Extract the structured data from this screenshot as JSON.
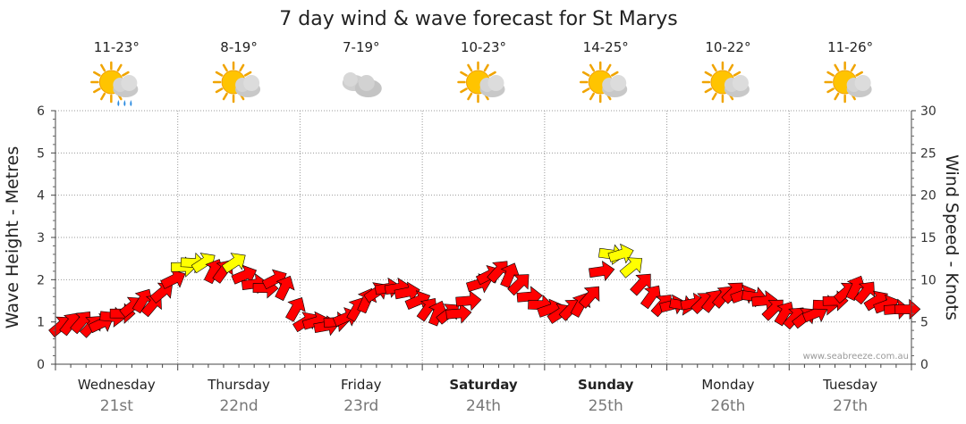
{
  "chart_data": {
    "type": "line",
    "title": "7 day wind & wave forecast for St Marys",
    "ylabel_left": "Wave Height - Metres",
    "ylabel_right": "Wind Speed - Knots",
    "ylim_left": [
      0,
      6
    ],
    "ylim_right": [
      0,
      30
    ],
    "yticks_left": [
      "0",
      "1",
      "2",
      "3",
      "4",
      "5",
      "6"
    ],
    "yticks_right": [
      "0",
      "5",
      "10",
      "15",
      "20",
      "25",
      "30"
    ],
    "days": [
      {
        "day": "Wednesday",
        "date": "21st",
        "temp": "11-23°",
        "icon": "sun-cloud-rain-icon",
        "bold": false
      },
      {
        "day": "Thursday",
        "date": "22nd",
        "temp": "8-19°",
        "icon": "sun-cloud-icon",
        "bold": false
      },
      {
        "day": "Friday",
        "date": "23rd",
        "temp": "7-19°",
        "icon": "cloud-icon",
        "bold": false
      },
      {
        "day": "Saturday",
        "date": "24th",
        "temp": "10-23°",
        "icon": "sun-cloud-icon",
        "bold": true
      },
      {
        "day": "Sunday",
        "date": "25th",
        "temp": "14-25°",
        "icon": "sun-cloud-icon",
        "bold": true
      },
      {
        "day": "Monday",
        "date": "26th",
        "temp": "10-22°",
        "icon": "sun-cloud-icon",
        "bold": false
      },
      {
        "day": "Tuesday",
        "date": "27th",
        "temp": "11-26°",
        "icon": "sun-cloud-icon",
        "bold": false
      }
    ],
    "series": [
      {
        "name": "wind",
        "unit": "knots",
        "x": [
          0,
          0.08,
          0.17,
          0.25,
          0.33,
          0.42,
          0.5,
          0.58,
          0.67,
          0.75,
          0.83,
          0.92,
          1,
          1.08,
          1.17,
          1.25,
          1.33,
          1.42,
          1.5,
          1.58,
          1.67,
          1.75,
          1.83,
          1.92,
          2,
          2.08,
          2.17,
          2.25,
          2.33,
          2.42,
          2.5,
          2.58,
          2.67,
          2.75,
          2.83,
          2.92,
          3,
          3.08,
          3.17,
          3.25,
          3.33,
          3.42,
          3.5,
          3.58,
          3.67,
          3.75,
          3.83,
          3.92,
          4,
          4.08,
          4.17,
          4.25,
          4.33,
          4.42,
          4.5,
          4.58,
          4.67,
          4.75,
          4.83,
          4.92,
          5,
          5.08,
          5.17,
          5.25,
          5.33,
          5.42,
          5.5,
          5.58,
          5.67,
          5.75,
          5.83,
          5.92,
          6,
          6.08,
          6.17,
          6.25,
          6.33,
          6.42,
          6.5,
          6.58,
          6.67,
          6.75,
          6.83,
          6.92
        ],
        "values": [
          4.5,
          4.8,
          5,
          4.5,
          4.8,
          5.6,
          6,
          6.8,
          7.5,
          7,
          8.5,
          10,
          11.5,
          12,
          12,
          11,
          11,
          12,
          10.5,
          9.5,
          9,
          10,
          9,
          6.5,
          5,
          5,
          4.5,
          5,
          5.5,
          6.5,
          7.5,
          8.5,
          9,
          9,
          8.5,
          7.5,
          6.5,
          6,
          6,
          6,
          7.5,
          9.5,
          10.5,
          11,
          10.5,
          9.5,
          8,
          7,
          6.5,
          6,
          6.5,
          7,
          8,
          11,
          13,
          13,
          11.5,
          9.5,
          8,
          7,
          7,
          7,
          7.2,
          7.3,
          7.5,
          8,
          8.5,
          8.2,
          8,
          7.5,
          6.5,
          6,
          5.5,
          5.5,
          6,
          7,
          7.5,
          8.5,
          9,
          8.5,
          7.5,
          7,
          6.5,
          6.5
        ],
        "color_normal": "#ff0000",
        "color_strong": "#ffff00"
      }
    ],
    "credit": "www.seabreeze.com.au",
    "grid": true
  }
}
